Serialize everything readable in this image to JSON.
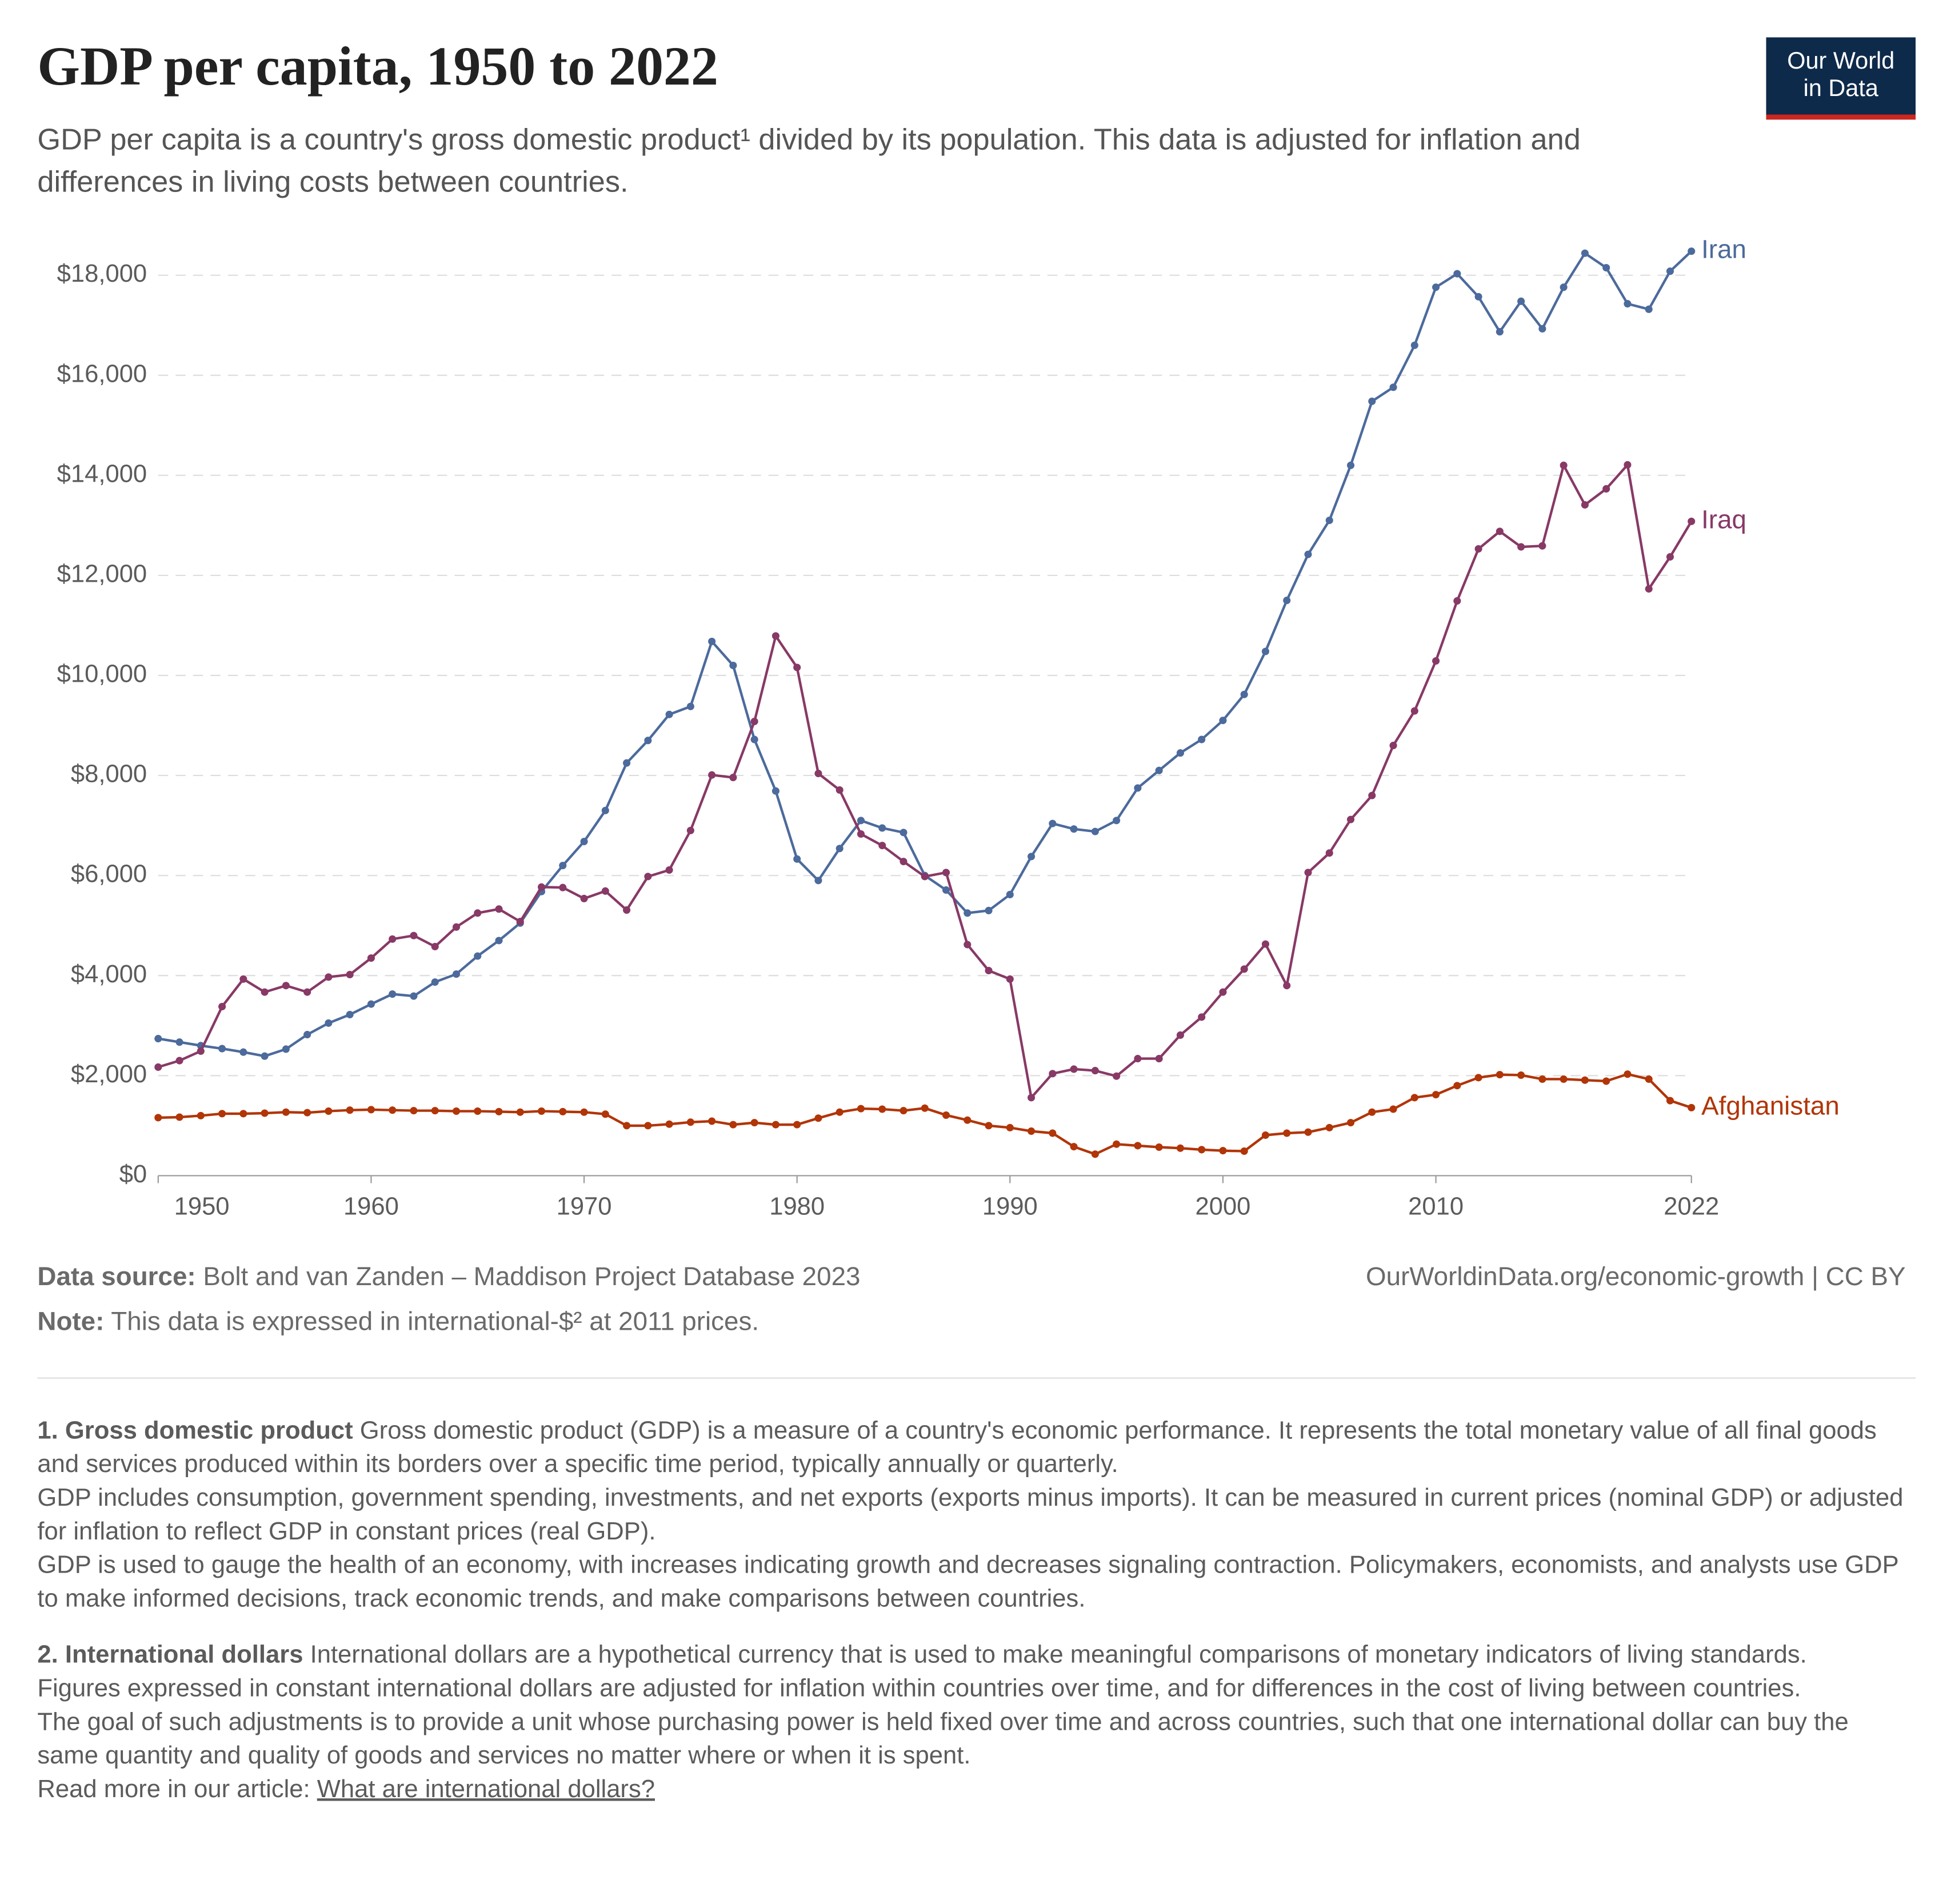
{
  "chart_data": {
    "type": "line",
    "title": "GDP per capita, 1950 to 2022",
    "subtitle": "GDP per capita is a country's gross domestic product¹ divided by its population. This data is adjusted for inflation and differences in living costs between countries.",
    "logo": [
      "Our World",
      "in Data"
    ],
    "x": [
      1950,
      1951,
      1952,
      1953,
      1954,
      1955,
      1956,
      1957,
      1958,
      1959,
      1960,
      1961,
      1962,
      1963,
      1964,
      1965,
      1966,
      1967,
      1968,
      1969,
      1970,
      1971,
      1972,
      1973,
      1974,
      1975,
      1976,
      1977,
      1978,
      1979,
      1980,
      1981,
      1982,
      1983,
      1984,
      1985,
      1986,
      1987,
      1988,
      1989,
      1990,
      1991,
      1992,
      1993,
      1994,
      1995,
      1996,
      1997,
      1998,
      1999,
      2000,
      2001,
      2002,
      2003,
      2004,
      2005,
      2006,
      2007,
      2008,
      2009,
      2010,
      2011,
      2012,
      2013,
      2014,
      2015,
      2016,
      2017,
      2018,
      2019,
      2020,
      2021,
      2022
    ],
    "series": [
      {
        "name": "Iran",
        "color": "#4c6a9c",
        "values": [
          2740,
          2670,
          2600,
          2540,
          2470,
          2390,
          2530,
          2820,
          3050,
          3220,
          3430,
          3630,
          3590,
          3870,
          4030,
          4390,
          4700,
          5050,
          5680,
          6200,
          6680,
          7300,
          8250,
          8700,
          9220,
          9380,
          10680,
          10200,
          8720,
          7690,
          6330,
          5900,
          6540,
          7100,
          6950,
          6860,
          6000,
          5710,
          5250,
          5300,
          5620,
          6380,
          7040,
          6930,
          6880,
          7100,
          7750,
          8100,
          8450,
          8720,
          9100,
          9620,
          10480,
          11500,
          12420,
          13100,
          14200,
          15480,
          15760,
          16600,
          17760,
          18030,
          17570,
          16870,
          17480,
          16930,
          17760,
          18440,
          18150,
          17430,
          17320,
          18080,
          18480
        ]
      },
      {
        "name": "Iraq",
        "color": "#883966",
        "values": [
          2170,
          2300,
          2490,
          3380,
          3930,
          3670,
          3800,
          3670,
          3970,
          4020,
          4350,
          4730,
          4800,
          4580,
          4970,
          5250,
          5330,
          5080,
          5770,
          5760,
          5540,
          5690,
          5310,
          5980,
          6110,
          6900,
          8010,
          7960,
          9080,
          10790,
          10160,
          8040,
          7710,
          6830,
          6600,
          6280,
          5980,
          6060,
          4620,
          4100,
          3930,
          1560,
          2040,
          2130,
          2100,
          1990,
          2340,
          2340,
          2810,
          3170,
          3670,
          4130,
          4630,
          3800,
          6060,
          6450,
          7120,
          7600,
          8600,
          9290,
          10290,
          11490,
          12530,
          12880,
          12570,
          12590,
          14200,
          13410,
          13730,
          14210,
          11730,
          12370,
          13080
        ]
      },
      {
        "name": "Afghanistan",
        "color": "#b13507",
        "values": [
          1160,
          1170,
          1200,
          1240,
          1240,
          1250,
          1270,
          1260,
          1290,
          1310,
          1320,
          1310,
          1300,
          1300,
          1290,
          1290,
          1280,
          1270,
          1290,
          1280,
          1270,
          1230,
          1000,
          1000,
          1030,
          1070,
          1090,
          1020,
          1060,
          1020,
          1020,
          1150,
          1270,
          1340,
          1330,
          1300,
          1350,
          1210,
          1110,
          1000,
          960,
          890,
          850,
          580,
          430,
          630,
          600,
          570,
          550,
          520,
          500,
          490,
          810,
          850,
          870,
          960,
          1060,
          1270,
          1330,
          1560,
          1620,
          1800,
          1960,
          2020,
          2010,
          1930,
          1930,
          1910,
          1890,
          2030,
          1930,
          1500,
          1360
        ]
      }
    ],
    "xlim": [
      1950,
      2022
    ],
    "xticks": [
      1950,
      1960,
      1970,
      1980,
      1990,
      2000,
      2010,
      2022
    ],
    "ylim": [
      0,
      18000
    ],
    "yticks": [
      {
        "value": 0,
        "label": "$0"
      },
      {
        "value": 2000,
        "label": "$2,000"
      },
      {
        "value": 4000,
        "label": "$4,000"
      },
      {
        "value": 6000,
        "label": "$6,000"
      },
      {
        "value": 8000,
        "label": "$8,000"
      },
      {
        "value": 10000,
        "label": "$10,000"
      },
      {
        "value": 12000,
        "label": "$12,000"
      },
      {
        "value": 14000,
        "label": "$14,000"
      },
      {
        "value": 16000,
        "label": "$16,000"
      },
      {
        "value": 18000,
        "label": "$18,000"
      }
    ],
    "grid": true,
    "source_label": "Data source:",
    "source": "Bolt and van Zanden – Maddison Project Database 2023",
    "credit": "OurWorldinData.org/economic-growth | CC BY",
    "note_label": "Note:",
    "note": "This data is expressed in international-$² at 2011 prices.",
    "footnotes": [
      {
        "title": "1. Gross domestic product",
        "paragraphs": [
          "Gross domestic product (GDP) is a measure of a country's economic performance. It represents the total monetary value of all final goods and services produced within its borders over a specific time period, typically annually or quarterly.",
          "GDP includes consumption, government spending, investments, and net exports (exports minus imports). It can be measured in current prices (nominal GDP) or adjusted for inflation to reflect GDP in constant prices (real GDP).",
          "GDP is used to gauge the health of an economy, with increases indicating growth and decreases signaling contraction. Policymakers, economists, and analysts use GDP to make informed decisions, track economic trends, and make comparisons between countries."
        ]
      },
      {
        "title": "2. International dollars",
        "paragraphs": [
          "International dollars are a hypothetical currency that is used to make meaningful comparisons of monetary indicators of living standards.",
          "Figures expressed in constant international dollars are adjusted for inflation within countries over time, and for differences in the cost of living between countries.",
          "The goal of such adjustments is to provide a unit whose purchasing power is held fixed over time and across countries, such that one international dollar can buy the same quantity and quality of goods and services no matter where or when it is spent."
        ],
        "read_more": "Read more in our article:",
        "link": "What are international dollars?"
      }
    ]
  }
}
